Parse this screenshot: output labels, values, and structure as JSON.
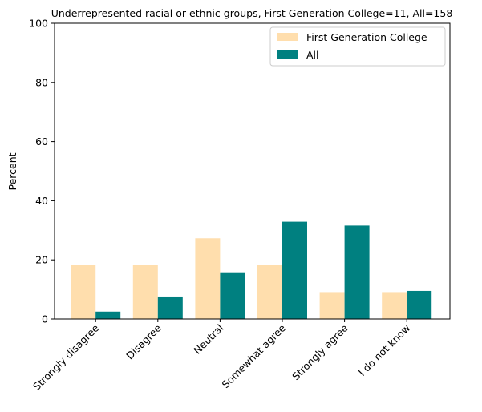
{
  "chart_data": {
    "type": "bar",
    "title": "Underrepresented racial or ethnic groups, First Generation College=11, All=158",
    "xlabel": "",
    "ylabel": "Percent",
    "ylim": [
      0,
      100
    ],
    "yticks": [
      0,
      20,
      40,
      60,
      80,
      100
    ],
    "categories": [
      "Strongly disagree",
      "Disagree",
      "Neutral",
      "Somewhat agree",
      "Strongly agree",
      "I do not know"
    ],
    "series": [
      {
        "name": "First Generation College",
        "color": "#ffdead",
        "values": [
          18.2,
          18.2,
          27.3,
          18.2,
          9.1,
          9.1
        ]
      },
      {
        "name": "All",
        "color": "#008080",
        "values": [
          2.5,
          7.6,
          15.8,
          32.9,
          31.6,
          9.5
        ]
      }
    ],
    "grid": false,
    "legend": "top-right"
  }
}
